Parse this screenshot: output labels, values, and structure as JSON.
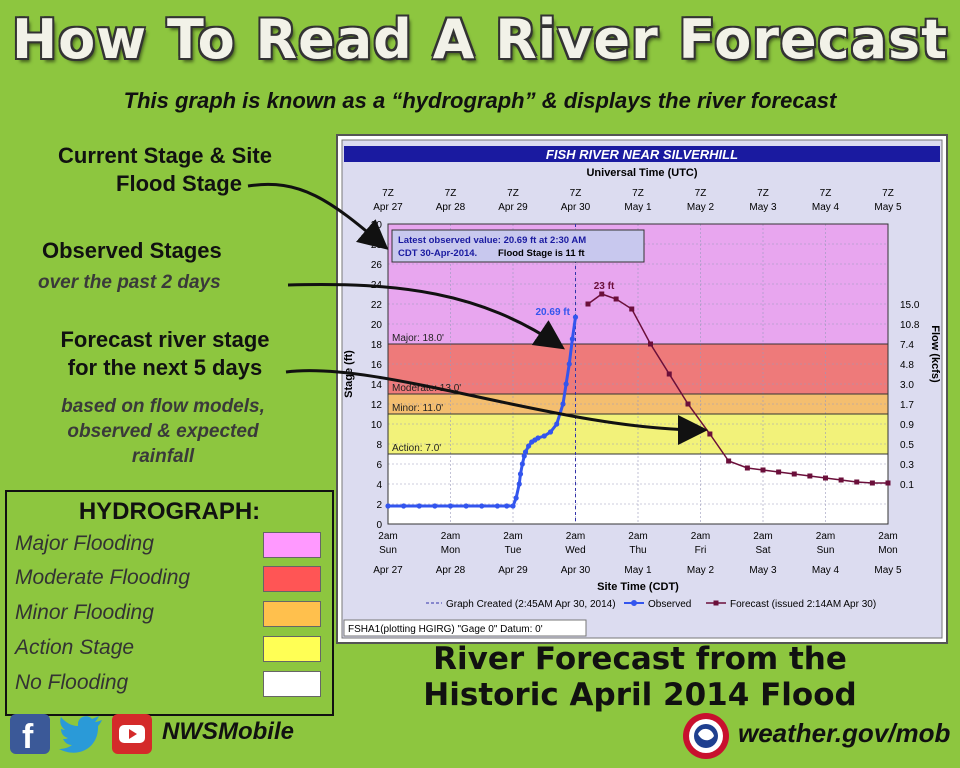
{
  "header": {
    "title": "How To Read A River Forecast",
    "subtitle": "This graph is known as a “hydrograph” & displays the river forecast"
  },
  "callouts": {
    "current_stage": [
      "Current Stage & Site",
      "Flood Stage"
    ],
    "observed": "Observed Stages",
    "observed_sub": "over the past 2 days",
    "forecast": [
      "Forecast river stage",
      "for the next 5 days"
    ],
    "forecast_sub": [
      "based on flow models,",
      "observed & expected",
      "rainfall"
    ]
  },
  "legend": {
    "title": "HYDROGRAPH:",
    "items": [
      {
        "label": "Major Flooding",
        "color": "#ff99ff"
      },
      {
        "label": "Moderate Flooding",
        "color": "#ff5555"
      },
      {
        "label": "Minor Flooding",
        "color": "#ffc04d"
      },
      {
        "label": "Action Stage",
        "color": "#ffff55"
      },
      {
        "label": "No Flooding",
        "color": "#ffffff"
      }
    ]
  },
  "caption": [
    "River Forecast from the",
    "Historic April 2014 Flood"
  ],
  "footer": {
    "nws_mobile": "NWSMobile",
    "website": "weather.gov/mob"
  },
  "chart_data": {
    "type": "line",
    "title": "FISH RIVER NEAR SILVERHILL",
    "top_axis_label": "Universal Time (UTC)",
    "top_ticks": [
      [
        "7Z",
        "Apr 27"
      ],
      [
        "7Z",
        "Apr 28"
      ],
      [
        "7Z",
        "Apr 29"
      ],
      [
        "7Z",
        "Apr 30"
      ],
      [
        "7Z",
        "May  1"
      ],
      [
        "7Z",
        "May  2"
      ],
      [
        "7Z",
        "May  3"
      ],
      [
        "7Z",
        "May  4"
      ],
      [
        "7Z",
        "May  5"
      ]
    ],
    "bottom_ticks": [
      [
        "2am",
        "Sun",
        "Apr 27"
      ],
      [
        "2am",
        "Mon",
        "Apr 28"
      ],
      [
        "2am",
        "Tue",
        "Apr 29"
      ],
      [
        "2am",
        "Wed",
        "Apr 30"
      ],
      [
        "2am",
        "Thu",
        "May 1"
      ],
      [
        "2am",
        "Fri",
        "May 2"
      ],
      [
        "2am",
        "Sat",
        "May 3"
      ],
      [
        "2am",
        "Sun",
        "May 4"
      ],
      [
        "2am",
        "Mon",
        "May 5"
      ]
    ],
    "xlabel": "Site Time (CDT)",
    "ylabel": "Stage (ft)",
    "y2label": "Flow (kcfs)",
    "ylim": [
      0,
      30
    ],
    "xlim": [
      0,
      8
    ],
    "yticks": [
      0,
      2,
      4,
      6,
      8,
      10,
      12,
      14,
      16,
      18,
      20,
      22,
      24,
      26,
      28,
      30
    ],
    "flow_ticks": [
      [
        "15.0",
        22
      ],
      [
        "10.8",
        20
      ],
      [
        "7.4",
        18
      ],
      [
        "4.8",
        16
      ],
      [
        "3.0",
        14
      ],
      [
        "1.7",
        12
      ],
      [
        "0.9",
        10
      ],
      [
        "0.5",
        8
      ],
      [
        "0.3",
        6
      ],
      [
        "0.1",
        4
      ]
    ],
    "stage_bands": [
      {
        "label": "Major: 18.0'",
        "from": 18,
        "to": 30,
        "color": "#e8a6ef"
      },
      {
        "label": "Moderate: 13.0'",
        "from": 13,
        "to": 18,
        "color": "#ee7a7a"
      },
      {
        "label": "Minor: 11.0'",
        "from": 11,
        "to": 13,
        "color": "#f4be6f"
      },
      {
        "label": "Action: 7.0'",
        "from": 7,
        "to": 11,
        "color": "#f2f27a"
      },
      {
        "label": "",
        "from": 0,
        "to": 7,
        "color": "#ffffff"
      }
    ],
    "annotation": [
      "Latest observed value: 20.69 ft at 2:30 AM",
      "CDT 30-Apr-2014.",
      "Flood Stage is 11 ft"
    ],
    "peak_observed_label": "20.69 ft",
    "peak_forecast_label": "23 ft",
    "graph_created_x": 3.0,
    "series": [
      {
        "name": "Observed",
        "color": "#3355ee",
        "x": [
          0,
          0.25,
          0.5,
          0.75,
          1.0,
          1.25,
          1.5,
          1.75,
          1.9,
          2.0,
          2.05,
          2.1,
          2.12,
          2.15,
          2.18,
          2.2,
          2.25,
          2.3,
          2.35,
          2.4,
          2.5,
          2.6,
          2.7,
          2.8,
          2.85,
          2.9,
          2.95,
          3.0
        ],
        "values": [
          1.8,
          1.8,
          1.8,
          1.8,
          1.8,
          1.8,
          1.8,
          1.8,
          1.8,
          1.8,
          2.6,
          4.0,
          5.0,
          6.0,
          6.8,
          7.2,
          7.8,
          8.2,
          8.4,
          8.6,
          8.8,
          9.2,
          10.0,
          12.0,
          14.0,
          16.0,
          18.5,
          20.69
        ]
      },
      {
        "name": "Forecast (issued 2:14AM Apr 30)",
        "color": "#6b0f3a",
        "x": [
          3.2,
          3.42,
          3.65,
          3.9,
          4.2,
          4.5,
          4.8,
          5.15,
          5.45,
          5.75,
          6.0,
          6.25,
          6.5,
          6.75,
          7.0,
          7.25,
          7.5,
          7.75,
          8.0
        ],
        "values": [
          22.0,
          23.0,
          22.5,
          21.5,
          18.0,
          15.0,
          12.0,
          9.0,
          6.3,
          5.6,
          5.4,
          5.2,
          5.0,
          4.8,
          4.6,
          4.4,
          4.2,
          4.1,
          4.1
        ]
      }
    ],
    "legend_graph_created": "Graph Created (2:45AM Apr 30, 2014)",
    "footnote": "FSHA1(plotting HGIRG) \"Gage 0\" Datum:  0'"
  }
}
